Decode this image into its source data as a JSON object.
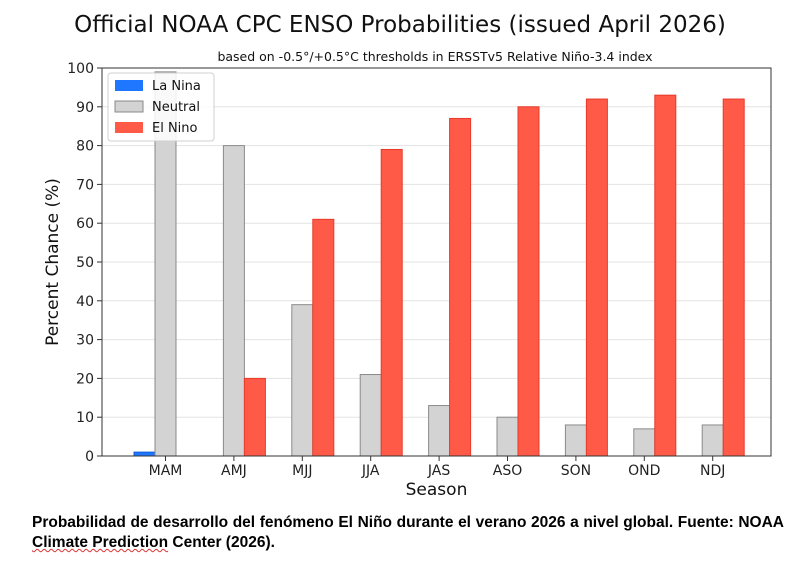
{
  "chart_data": {
    "type": "bar",
    "title": "Official NOAA CPC ENSO Probabilities (issued April 2026)",
    "subtitle": "based on -0.5°/+0.5°C thresholds in ERSSTv5 Relative Niño-3.4 index",
    "xlabel": "Season",
    "ylabel": "Percent Chance (%)",
    "ylim": [
      0,
      100
    ],
    "yticks": [
      0,
      10,
      20,
      30,
      40,
      50,
      60,
      70,
      80,
      90,
      100
    ],
    "grid": true,
    "legend_position": "top-left",
    "categories": [
      "MAM",
      "AMJ",
      "MJJ",
      "JJA",
      "JAS",
      "ASO",
      "SON",
      "OND",
      "NDJ"
    ],
    "series": [
      {
        "name": "La Nina",
        "color": "#1f77ff",
        "values": [
          1,
          0,
          0,
          0,
          0,
          0,
          0,
          0,
          0
        ]
      },
      {
        "name": "Neutral",
        "color": "#d3d3d3",
        "values": [
          99,
          80,
          39,
          21,
          13,
          10,
          8,
          7,
          8
        ]
      },
      {
        "name": "El Nino",
        "color": "#ff5a47",
        "values": [
          0,
          20,
          61,
          79,
          87,
          90,
          92,
          93,
          92
        ]
      }
    ]
  },
  "caption": {
    "part1": "Probabilidad de desarrollo del fenómeno El Niño durante el verano 2026 a nivel global. Fuente: NOAA ",
    "part2": "Climate Prediction",
    "part3": " Center (2026)."
  }
}
